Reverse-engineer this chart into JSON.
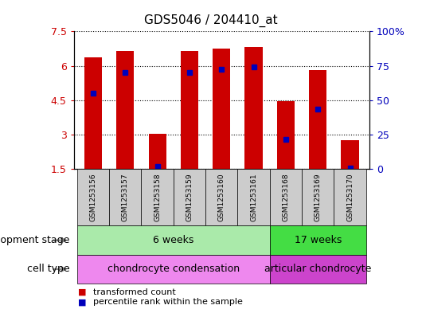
{
  "title": "GDS5046 / 204410_at",
  "samples": [
    "GSM1253156",
    "GSM1253157",
    "GSM1253158",
    "GSM1253159",
    "GSM1253160",
    "GSM1253161",
    "GSM1253168",
    "GSM1253169",
    "GSM1253170"
  ],
  "bar_values": [
    6.35,
    6.65,
    3.02,
    6.65,
    6.75,
    6.8,
    4.45,
    5.8,
    2.75
  ],
  "bar_base": 1.5,
  "percentile_values": [
    4.8,
    5.7,
    1.6,
    5.7,
    5.85,
    5.95,
    2.8,
    4.1,
    1.55
  ],
  "ylim_left": [
    1.5,
    7.5
  ],
  "ylim_right": [
    0,
    100
  ],
  "yticks_left": [
    1.5,
    3.0,
    4.5,
    6.0,
    7.5
  ],
  "yticks_right": [
    0,
    25,
    50,
    75,
    100
  ],
  "ytick_labels_left": [
    "1.5",
    "3",
    "4.5",
    "6",
    "7.5"
  ],
  "ytick_labels_right": [
    "0",
    "25",
    "50",
    "75",
    "100%"
  ],
  "bar_color": "#cc0000",
  "percentile_color": "#0000bb",
  "bar_width": 0.55,
  "dev_stage_groups": [
    {
      "label": "6 weeks",
      "start": 0,
      "end": 6,
      "color": "#aaeaaa"
    },
    {
      "label": "17 weeks",
      "start": 6,
      "end": 9,
      "color": "#44dd44"
    }
  ],
  "cell_type_groups": [
    {
      "label": "chondrocyte condensation",
      "start": 0,
      "end": 6,
      "color": "#ee88ee"
    },
    {
      "label": "articular chondrocyte",
      "start": 6,
      "end": 9,
      "color": "#cc44cc"
    }
  ],
  "dev_stage_label": "development stage",
  "cell_type_label": "cell type",
  "legend_bar_label": "transformed count",
  "legend_pct_label": "percentile rank within the sample",
  "grid_color": "#000000",
  "bg_color": "#ffffff",
  "plot_bg_color": "#ffffff",
  "left_label_color": "#cc0000",
  "right_label_color": "#0000bb",
  "sample_box_color": "#cccccc",
  "arrow_color": "#888888"
}
